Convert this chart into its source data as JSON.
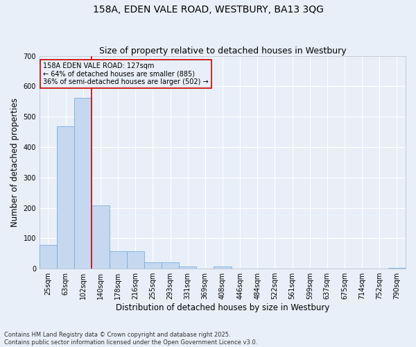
{
  "title": "158A, EDEN VALE ROAD, WESTBURY, BA13 3QG",
  "subtitle": "Size of property relative to detached houses in Westbury",
  "xlabel": "Distribution of detached houses by size in Westbury",
  "ylabel": "Number of detached properties",
  "bar_labels": [
    "25sqm",
    "63sqm",
    "102sqm",
    "140sqm",
    "178sqm",
    "216sqm",
    "255sqm",
    "293sqm",
    "331sqm",
    "369sqm",
    "408sqm",
    "446sqm",
    "484sqm",
    "522sqm",
    "561sqm",
    "599sqm",
    "637sqm",
    "675sqm",
    "714sqm",
    "752sqm",
    "790sqm"
  ],
  "bar_values": [
    78,
    468,
    562,
    208,
    57,
    57,
    20,
    20,
    7,
    0,
    7,
    0,
    0,
    0,
    0,
    0,
    0,
    0,
    0,
    0,
    2
  ],
  "bar_color": "#c5d8f0",
  "bar_edge_color": "#7aadda",
  "bg_color": "#e8eff8",
  "grid_color": "#ffffff",
  "vline_color": "#cc0000",
  "vline_pos": 2.5,
  "annotation_text": "158A EDEN VALE ROAD: 127sqm\n← 64% of detached houses are smaller (885)\n36% of semi-detached houses are larger (502) →",
  "annotation_box_color": "#cc0000",
  "ylim": [
    0,
    700
  ],
  "yticks": [
    0,
    100,
    200,
    300,
    400,
    500,
    600,
    700
  ],
  "footer": "Contains HM Land Registry data © Crown copyright and database right 2025.\nContains public sector information licensed under the Open Government Licence v3.0.",
  "title_fontsize": 10,
  "subtitle_fontsize": 9,
  "xlabel_fontsize": 8.5,
  "ylabel_fontsize": 8.5,
  "tick_fontsize": 7,
  "footer_fontsize": 6,
  "ann_fontsize": 7
}
